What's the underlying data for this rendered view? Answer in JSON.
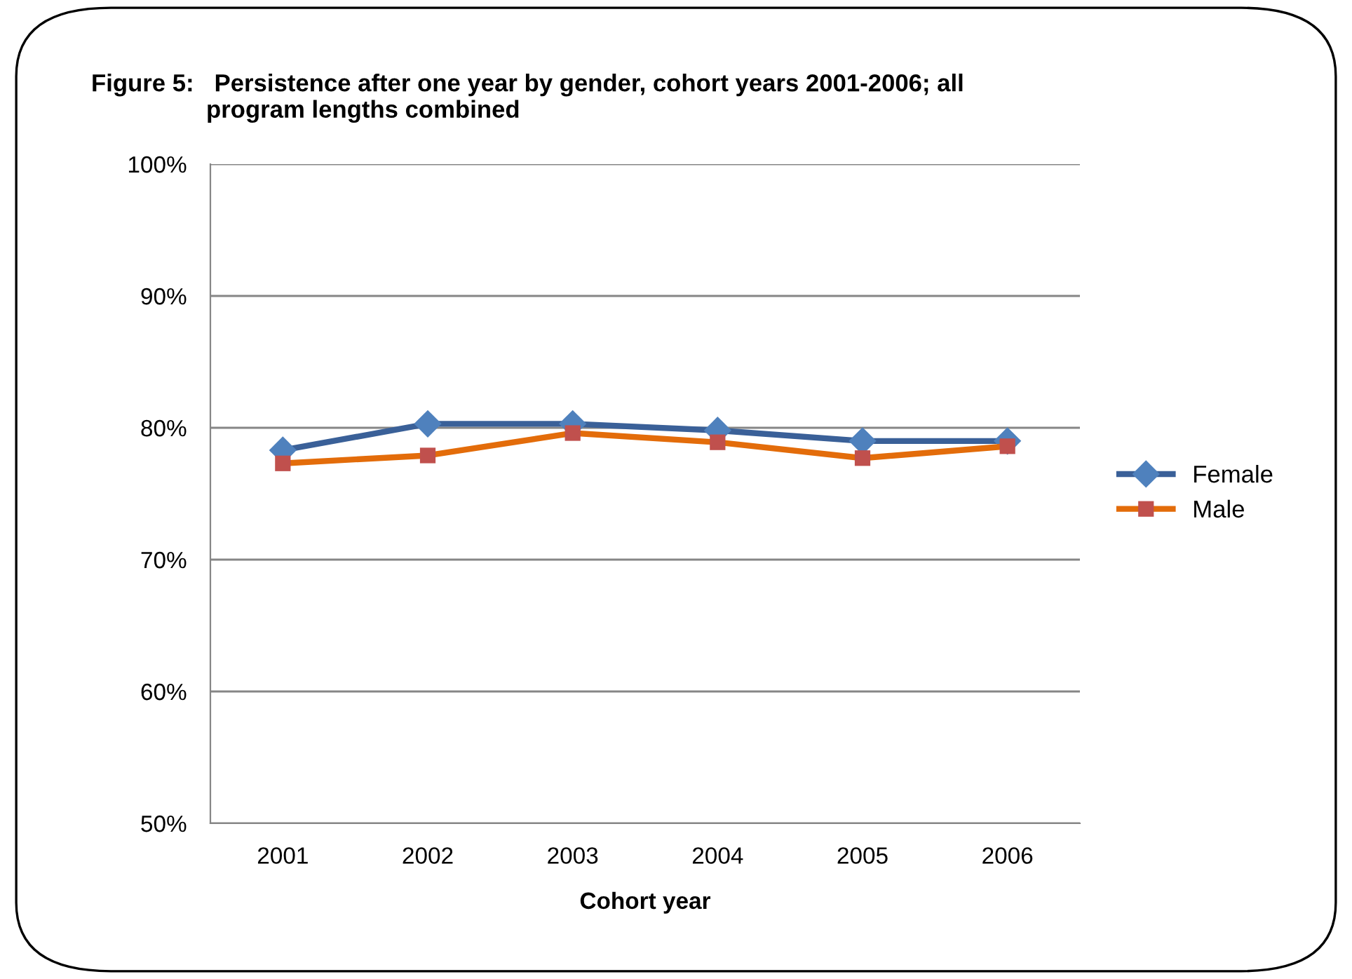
{
  "chart_data": {
    "type": "line",
    "title": "Figure 5:   Persistence after one year by gender, cohort years 2001-2006; all\n                 program lengths combined",
    "xlabel": "Cohort year",
    "categories": [
      "2001",
      "2002",
      "2003",
      "2004",
      "2005",
      "2006"
    ],
    "series": [
      {
        "name": "Female",
        "color": "#3a6098",
        "marker": "diamond",
        "values": [
          78.3,
          80.3,
          80.3,
          79.8,
          79.0,
          79.0
        ]
      },
      {
        "name": "Male",
        "color": "#e36c0a",
        "marker": "square",
        "values": [
          77.3,
          77.9,
          79.6,
          78.9,
          77.7,
          78.6
        ]
      }
    ],
    "ylim": [
      50,
      100
    ],
    "yticks": [
      {
        "value": 50,
        "label": "50%"
      },
      {
        "value": 60,
        "label": "60%"
      },
      {
        "value": 70,
        "label": "70%"
      },
      {
        "value": 80,
        "label": "80%"
      },
      {
        "value": 90,
        "label": "90%"
      },
      {
        "value": 100,
        "label": "100%"
      }
    ],
    "grid": "y",
    "legend": "right"
  }
}
